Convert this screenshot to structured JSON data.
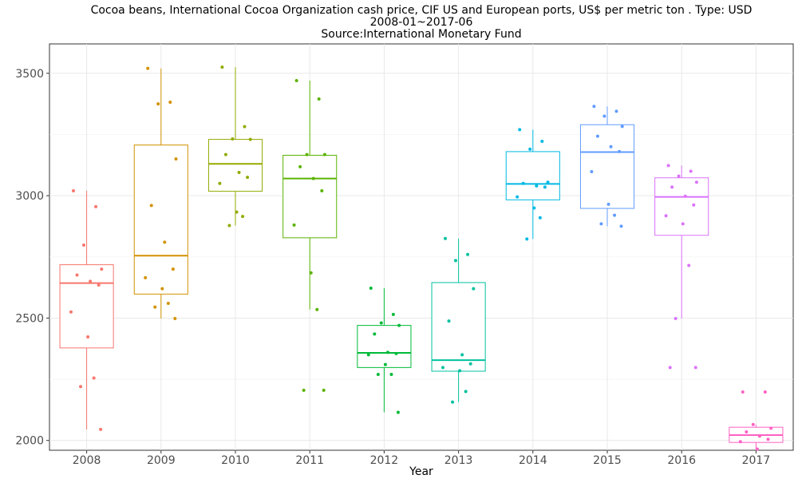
{
  "chart_data": {
    "type": "box",
    "title_lines": [
      "Cocoa beans, International Cocoa Organization cash price, CIF US and European ports, US$ per metric ton . Type: USD",
      "2008-01~2017-06",
      "Source:International Monetary Fund"
    ],
    "xlabel": "Year",
    "ylabel": "",
    "ylim": [
      1960,
      3620
    ],
    "yticks": [
      2000,
      2500,
      3000,
      3500
    ],
    "grid": true,
    "legend": "none",
    "categories": [
      "2008",
      "2009",
      "2010",
      "2011",
      "2012",
      "2013",
      "2014",
      "2015",
      "2016",
      "2017"
    ],
    "series": [
      {
        "category": "2008",
        "color": "#F8766D",
        "box": {
          "min": 2045,
          "q1": 2378,
          "median": 2643,
          "q3": 2718,
          "max": 3020
        },
        "points": [
          3020,
          2955,
          2798,
          2700,
          2676,
          2650,
          2635,
          2525,
          2423,
          2255,
          2220,
          2045
        ]
      },
      {
        "category": "2009",
        "color": "#D39200",
        "box": {
          "min": 2498,
          "q1": 2598,
          "median": 2755,
          "q3": 3207,
          "max": 3520
        },
        "points": [
          3520,
          3382,
          3375,
          3150,
          2960,
          2810,
          2700,
          2665,
          2620,
          2560,
          2545,
          2498
        ]
      },
      {
        "category": "2010",
        "color": "#93AA00",
        "box": {
          "min": 2878,
          "q1": 3018,
          "median": 3130,
          "q3": 3230,
          "max": 3525
        },
        "points": [
          3525,
          3282,
          3232,
          3230,
          3168,
          3095,
          3075,
          3050,
          2933,
          2915,
          2878
        ]
      },
      {
        "category": "2011",
        "color": "#5BB300",
        "box": {
          "min": 2535,
          "q1": 2828,
          "median": 3070,
          "q3": 3165,
          "max": 3470
        },
        "points": [
          3470,
          3395,
          3168,
          3168,
          3118,
          3070,
          3020,
          2880,
          2685,
          2535,
          2205,
          2205
        ]
      },
      {
        "category": "2012",
        "color": "#00BA38",
        "box": {
          "min": 2115,
          "q1": 2298,
          "median": 2358,
          "q3": 2470,
          "max": 2622
        },
        "points": [
          2622,
          2515,
          2480,
          2470,
          2435,
          2360,
          2355,
          2350,
          2310,
          2270,
          2270,
          2115
        ]
      },
      {
        "category": "2013",
        "color": "#00C19F",
        "box": {
          "min": 2157,
          "q1": 2283,
          "median": 2328,
          "q3": 2645,
          "max": 2825
        },
        "points": [
          2825,
          2760,
          2735,
          2620,
          2488,
          2350,
          2313,
          2298,
          2285,
          2200,
          2157
        ]
      },
      {
        "category": "2014",
        "color": "#00B9E3",
        "box": {
          "min": 2823,
          "q1": 2983,
          "median": 3048,
          "q3": 3180,
          "max": 3270
        },
        "points": [
          3270,
          3222,
          3190,
          3055,
          3050,
          3040,
          3035,
          2995,
          2950,
          2910,
          2823
        ]
      },
      {
        "category": "2015",
        "color": "#619CFF",
        "box": {
          "min": 2875,
          "q1": 2948,
          "median": 3178,
          "q3": 3290,
          "max": 3365
        },
        "points": [
          3365,
          3345,
          3325,
          3283,
          3243,
          3200,
          3180,
          3098,
          2965,
          2920,
          2885,
          2875
        ]
      },
      {
        "category": "2016",
        "color": "#DB72FB",
        "box": {
          "min": 2498,
          "q1": 2838,
          "median": 2995,
          "q3": 3073,
          "max": 3123
        },
        "points": [
          3123,
          3100,
          3080,
          3055,
          3035,
          2998,
          2962,
          2918,
          2885,
          2715,
          2498,
          2298,
          2298
        ]
      },
      {
        "category": "2017",
        "color": "#FF61C3",
        "box": {
          "min": 1965,
          "q1": 1992,
          "median": 2022,
          "q3": 2054,
          "max": 2065
        },
        "points": [
          2198,
          2198,
          2065,
          2050,
          2035,
          2018,
          2005,
          1995,
          1965
        ]
      }
    ]
  }
}
